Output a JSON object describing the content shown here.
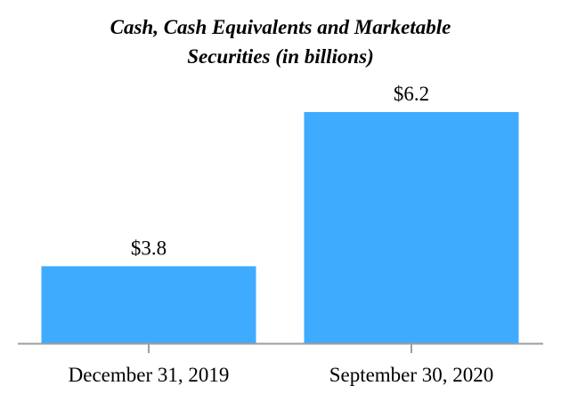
{
  "chart_data": {
    "type": "bar",
    "title": "Cash, Cash Equivalents and Marketable Securities (in billions)",
    "title_lines": [
      "Cash, Cash Equivalents and Marketable",
      "Securities (in billions)"
    ],
    "categories": [
      "December 31, 2019",
      "September 30, 2020"
    ],
    "values": [
      3.8,
      6.2
    ],
    "data_labels": [
      "$3.8",
      "$6.2"
    ],
    "xlabel": "",
    "ylabel": "",
    "ylim": [
      2.6,
      6.2
    ],
    "grid": false,
    "legend": "none",
    "bar_color": "#3fabff",
    "axis_color": "#9e9e9e"
  }
}
